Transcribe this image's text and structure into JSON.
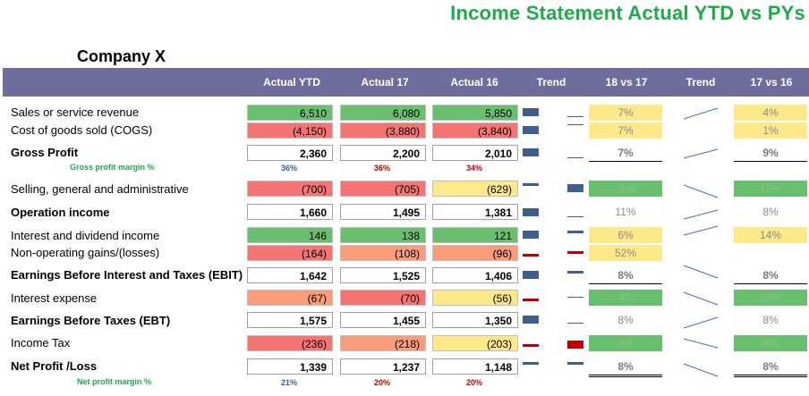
{
  "report_title": "Income Statement Actual YTD vs PYs",
  "company": "Company X",
  "headers": [
    "Actual YTD",
    "Actual 17",
    "Actual 16",
    "Trend",
    "18 vs 17",
    "Trend",
    "17 vs 16"
  ],
  "rows": [
    {
      "label": "Sales or service revenue",
      "ytd": "6,510",
      "a17": "6,080",
      "a16": "5,850",
      "c1": "7%",
      "c2": "4%"
    },
    {
      "label": "Cost of goods sold (COGS)",
      "ytd": "(4,150)",
      "a17": "(3,880)",
      "a16": "(3,840)",
      "c1": "7%",
      "c2": "1%"
    },
    {
      "label": "Gross Profit",
      "ytd": "2,360",
      "a17": "2,200",
      "a16": "2,010",
      "c1": "7%",
      "c2": "9%"
    },
    {
      "label": "Selling, general and administrative",
      "ytd": "(700)",
      "a17": "(705)",
      "a16": "(629)",
      "c1": "-1%",
      "c2": "12%"
    },
    {
      "label": "Operation income",
      "ytd": "1,660",
      "a17": "1,495",
      "a16": "1,381",
      "c1": "11%",
      "c2": "8%"
    },
    {
      "label": "Interest and dividend income",
      "ytd": "146",
      "a17": "138",
      "a16": "121",
      "c1": "6%",
      "c2": "14%"
    },
    {
      "label": "Non-operating gains/(losses)",
      "ytd": "(164)",
      "a17": "(108)",
      "a16": "(96)",
      "c1": "52%",
      "c2": ""
    },
    {
      "label": "Earnings Before Interest and Taxes (EBIT)",
      "ytd": "1,642",
      "a17": "1,525",
      "a16": "1,406",
      "c1": "8%",
      "c2": "8%"
    },
    {
      "label": "Interest expense",
      "ytd": "(67)",
      "a17": "(70)",
      "a16": "(56)",
      "c1": "-4%",
      "c2": "25%"
    },
    {
      "label": "Earnings Before Taxes (EBT)",
      "ytd": "1,575",
      "a17": "1,455",
      "a16": "1,350",
      "c1": "8%",
      "c2": "8%"
    },
    {
      "label": "Income Tax",
      "ytd": "(236)",
      "a17": "(218)",
      "a16": "(203)",
      "c1": "8%",
      "c2": "8%"
    },
    {
      "label": "Net Profit /Loss",
      "ytd": "1,339",
      "a17": "1,237",
      "a16": "1,148",
      "c1": "8%",
      "c2": "8%"
    }
  ],
  "gross_margin": {
    "label": "Gross profit margin %",
    "ytd": "36%",
    "a17": "36%",
    "a16": "34%"
  },
  "net_margin": {
    "label": "Net profit margin %",
    "ytd": "21%",
    "a17": "20%",
    "a16": "20%"
  },
  "colors": {
    "title": "#1faa4a",
    "header": "#6e6e9e",
    "green": "#6abf6f",
    "red": "#f47474",
    "orange": "#f89c7c",
    "yellow": "#fde98a",
    "bar_blue": "#3f5f8f",
    "bar_red": "#c00000"
  }
}
